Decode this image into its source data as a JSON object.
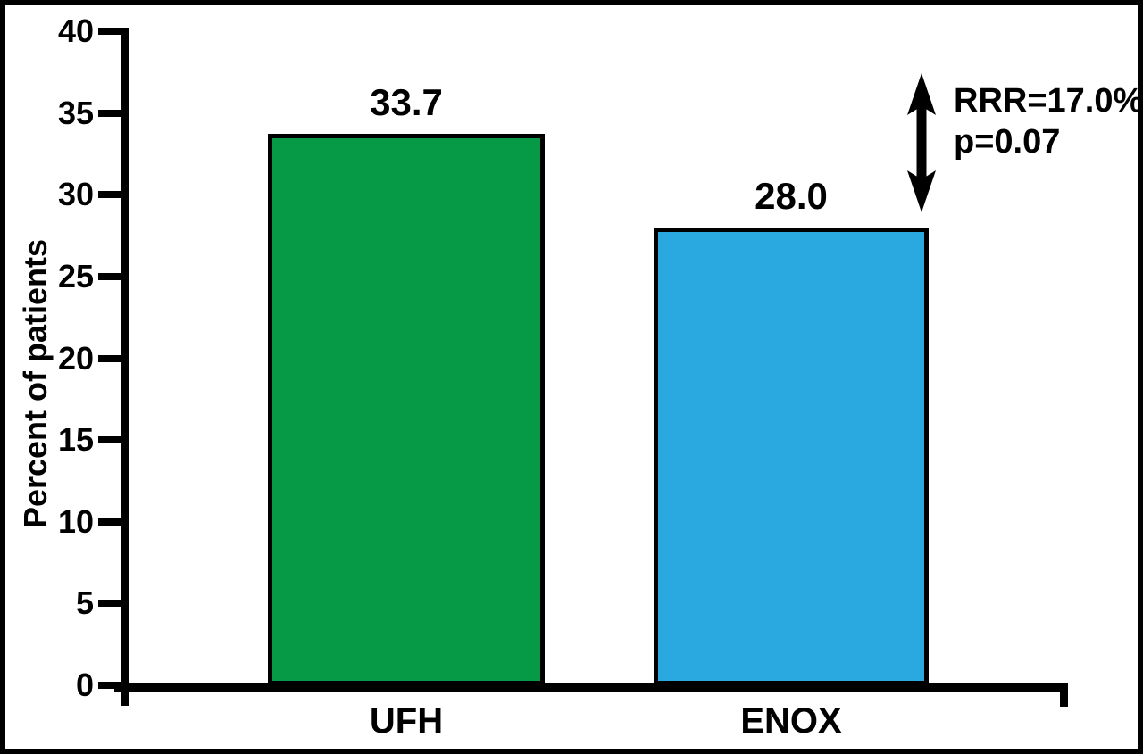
{
  "chart_data": {
    "type": "bar",
    "title": "",
    "xlabel": "",
    "ylabel": "Percent of patients",
    "categories": [
      "UFH",
      "ENOX"
    ],
    "values": [
      33.7,
      28.0
    ],
    "value_labels": [
      "33.7",
      "28.0"
    ],
    "bar_colors": [
      "#069A47",
      "#2AA9E0"
    ],
    "ylim": [
      0,
      40
    ],
    "yticks": [
      0,
      5,
      10,
      15,
      20,
      25,
      30,
      35,
      40
    ],
    "grid": "off",
    "legend": "none",
    "annotation": {
      "line1": "RRR=17.0%",
      "line2": "p=0.07",
      "arrow_icon": "double-headed-vertical-arrow",
      "arrow_color": "#000000"
    }
  }
}
